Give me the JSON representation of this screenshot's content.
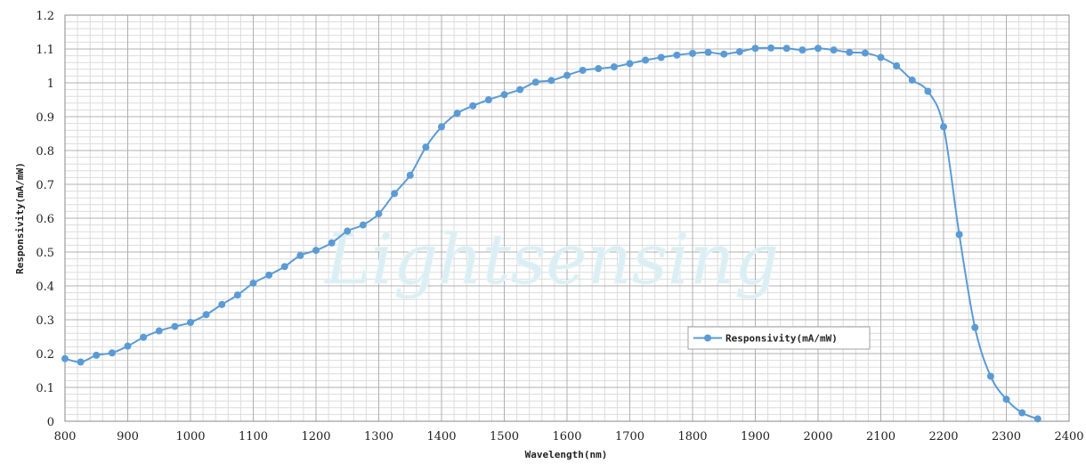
{
  "chart_data": {
    "type": "line",
    "title": "",
    "xlabel": "Wavelength(nm)",
    "ylabel": "Responsivity(mA/mW)",
    "xlim": [
      800,
      2400
    ],
    "ylim": [
      0,
      1.2
    ],
    "x_ticks": [
      800,
      900,
      1000,
      1100,
      1200,
      1300,
      1400,
      1500,
      1600,
      1700,
      1800,
      1900,
      2000,
      2100,
      2200,
      2300,
      2400
    ],
    "y_ticks": [
      0,
      0.1,
      0.2,
      0.3,
      0.4,
      0.5,
      0.6,
      0.7,
      0.8,
      0.9,
      1,
      1.1,
      1.2
    ],
    "x_tick_labels": [
      "800",
      "900",
      "1000",
      "1100",
      "1200",
      "1300",
      "1400",
      "1500",
      "1600",
      "1700",
      "1800",
      "1900",
      "2000",
      "2100",
      "2200",
      "2300",
      "2400"
    ],
    "y_tick_labels": [
      "0",
      "0.1",
      "0.2",
      "0.3",
      "0.4",
      "0.5",
      "0.6",
      "0.7",
      "0.8",
      "0.9",
      "1",
      "1.1",
      "1.2"
    ],
    "grid": true,
    "legend_position": "lower-right-center",
    "watermark": "Lightsensing",
    "colors": {
      "series": "#5b9bd5",
      "grid_major": "#b0b0b0",
      "grid_minor": "#dcdcdc",
      "watermark": "#dbeef3"
    },
    "series": [
      {
        "name": "Responsivity(mA/mW)",
        "x": [
          800,
          825,
          850,
          875,
          900,
          925,
          950,
          975,
          1000,
          1025,
          1050,
          1075,
          1100,
          1125,
          1150,
          1175,
          1200,
          1225,
          1250,
          1275,
          1300,
          1325,
          1350,
          1375,
          1400,
          1425,
          1450,
          1475,
          1500,
          1525,
          1550,
          1575,
          1600,
          1625,
          1650,
          1675,
          1700,
          1725,
          1750,
          1775,
          1800,
          1825,
          1850,
          1875,
          1900,
          1925,
          1950,
          1975,
          2000,
          2025,
          2050,
          2075,
          2100,
          2125,
          2150,
          2175,
          2200,
          2225,
          2250,
          2275,
          2300,
          2325,
          2350
        ],
        "values": [
          0.185,
          0.175,
          0.195,
          0.202,
          0.222,
          0.248,
          0.267,
          0.28,
          0.292,
          0.315,
          0.345,
          0.373,
          0.408,
          0.432,
          0.457,
          0.49,
          0.505,
          0.527,
          0.562,
          0.58,
          0.613,
          0.673,
          0.727,
          0.81,
          0.87,
          0.91,
          0.932,
          0.95,
          0.965,
          0.98,
          1.002,
          1.007,
          1.022,
          1.037,
          1.042,
          1.047,
          1.057,
          1.067,
          1.075,
          1.082,
          1.087,
          1.09,
          1.085,
          1.092,
          1.102,
          1.103,
          1.102,
          1.097,
          1.102,
          1.097,
          1.09,
          1.088,
          1.075,
          1.05,
          1.008,
          0.975,
          0.87,
          0.552,
          0.277,
          0.133,
          0.065,
          0.025,
          0.007
        ]
      }
    ]
  }
}
